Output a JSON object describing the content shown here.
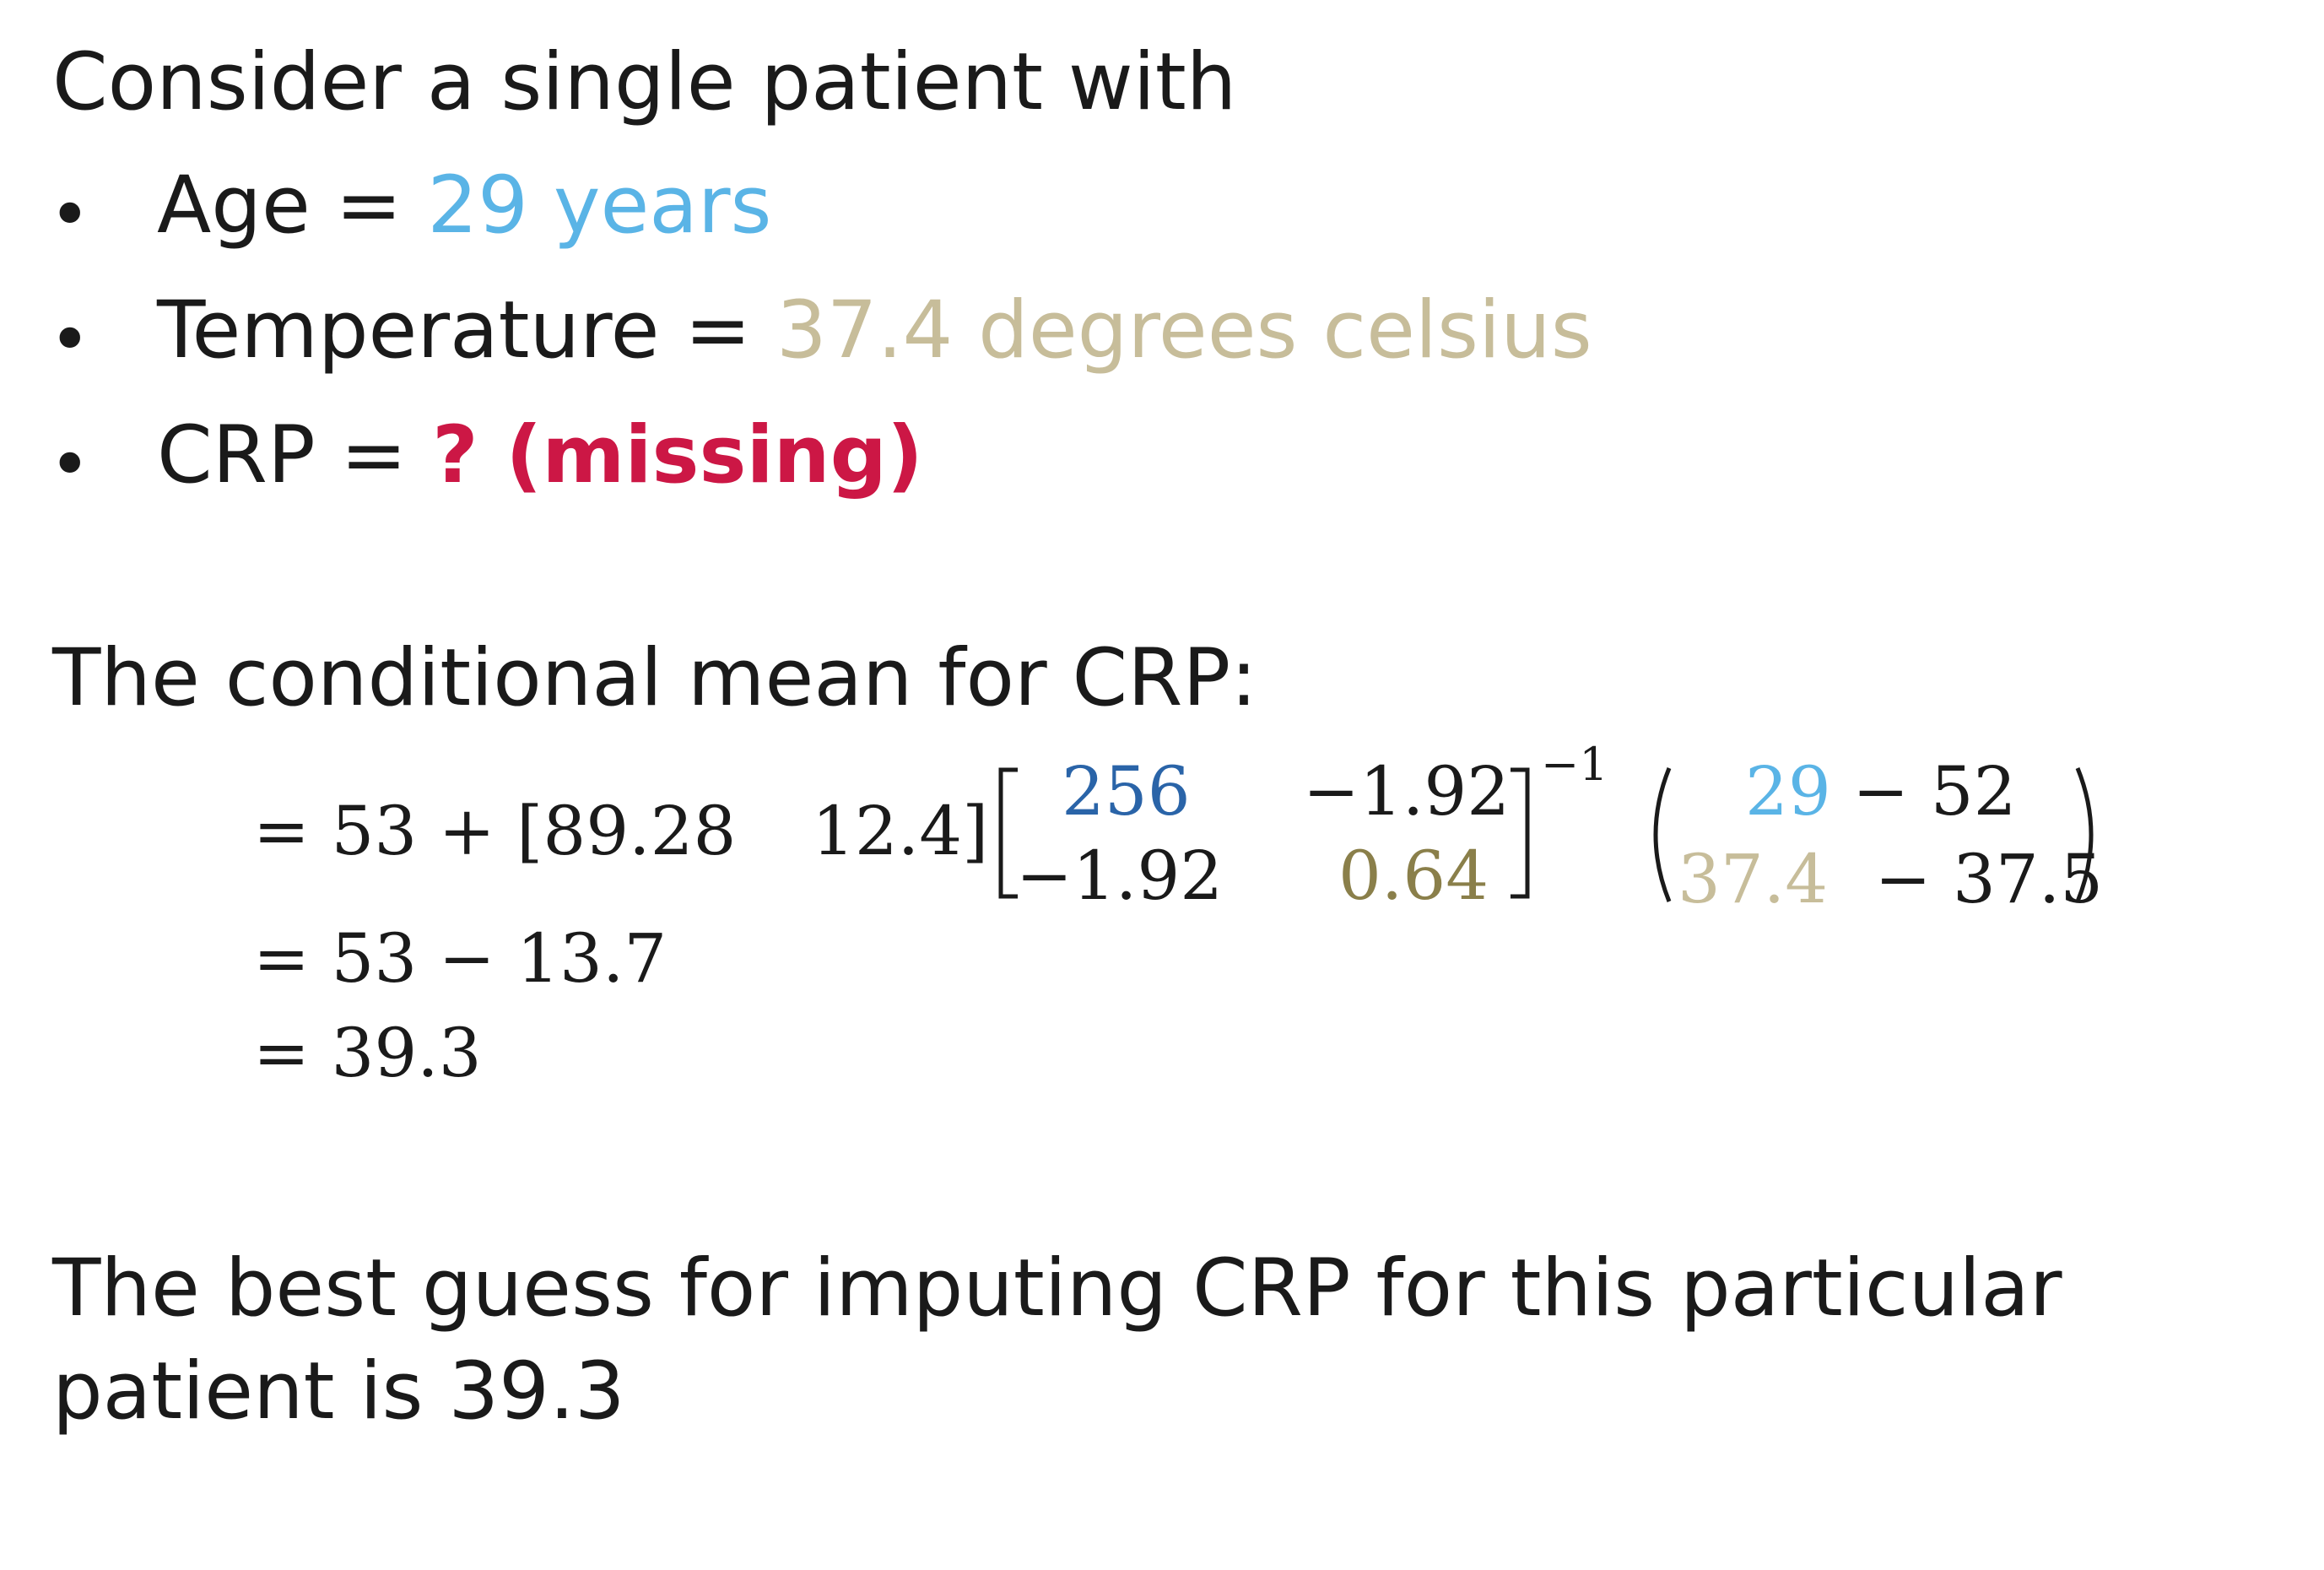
{
  "intro": "Consider a single patient with",
  "bullets": [
    {
      "label": "Age = ",
      "value": "29 years",
      "value_color": "#5ab4e6",
      "value_bold": false
    },
    {
      "label": "Temperature = ",
      "value": "37.4 degrees celsius",
      "value_color": "#c7bd9a",
      "value_bold": false
    },
    {
      "label": "CRP = ",
      "value": "? (missing)",
      "value_color": "#cc1745",
      "value_bold": true
    }
  ],
  "bullet_symbol": "•",
  "conditional_heading": "The conditional mean for CRP:",
  "equation": {
    "line1_prefix": "= 53 + [89.28",
    "row_vector_second": "12.4]",
    "matrix": {
      "a11": "256",
      "a12": "−1.92",
      "a21": "−1.92",
      "a22": "0.64",
      "exponent": "−1"
    },
    "vector": {
      "r1_value": "29",
      "r1_rest": "− 52",
      "r2_value": "37.4",
      "r2_rest": "− 37.5"
    },
    "line2": "= 53 − 13.7",
    "line3": "= 39.3"
  },
  "colors": {
    "age_blue": "#5ab4e6",
    "temp_tan": "#c7bd9a",
    "matrix_blue": "#2a64a8",
    "matrix_olive": "#8a7f4a",
    "missing_red": "#cc1745"
  },
  "conclusion": "The best guess for imputing CRP for this particular patient is 39.3"
}
